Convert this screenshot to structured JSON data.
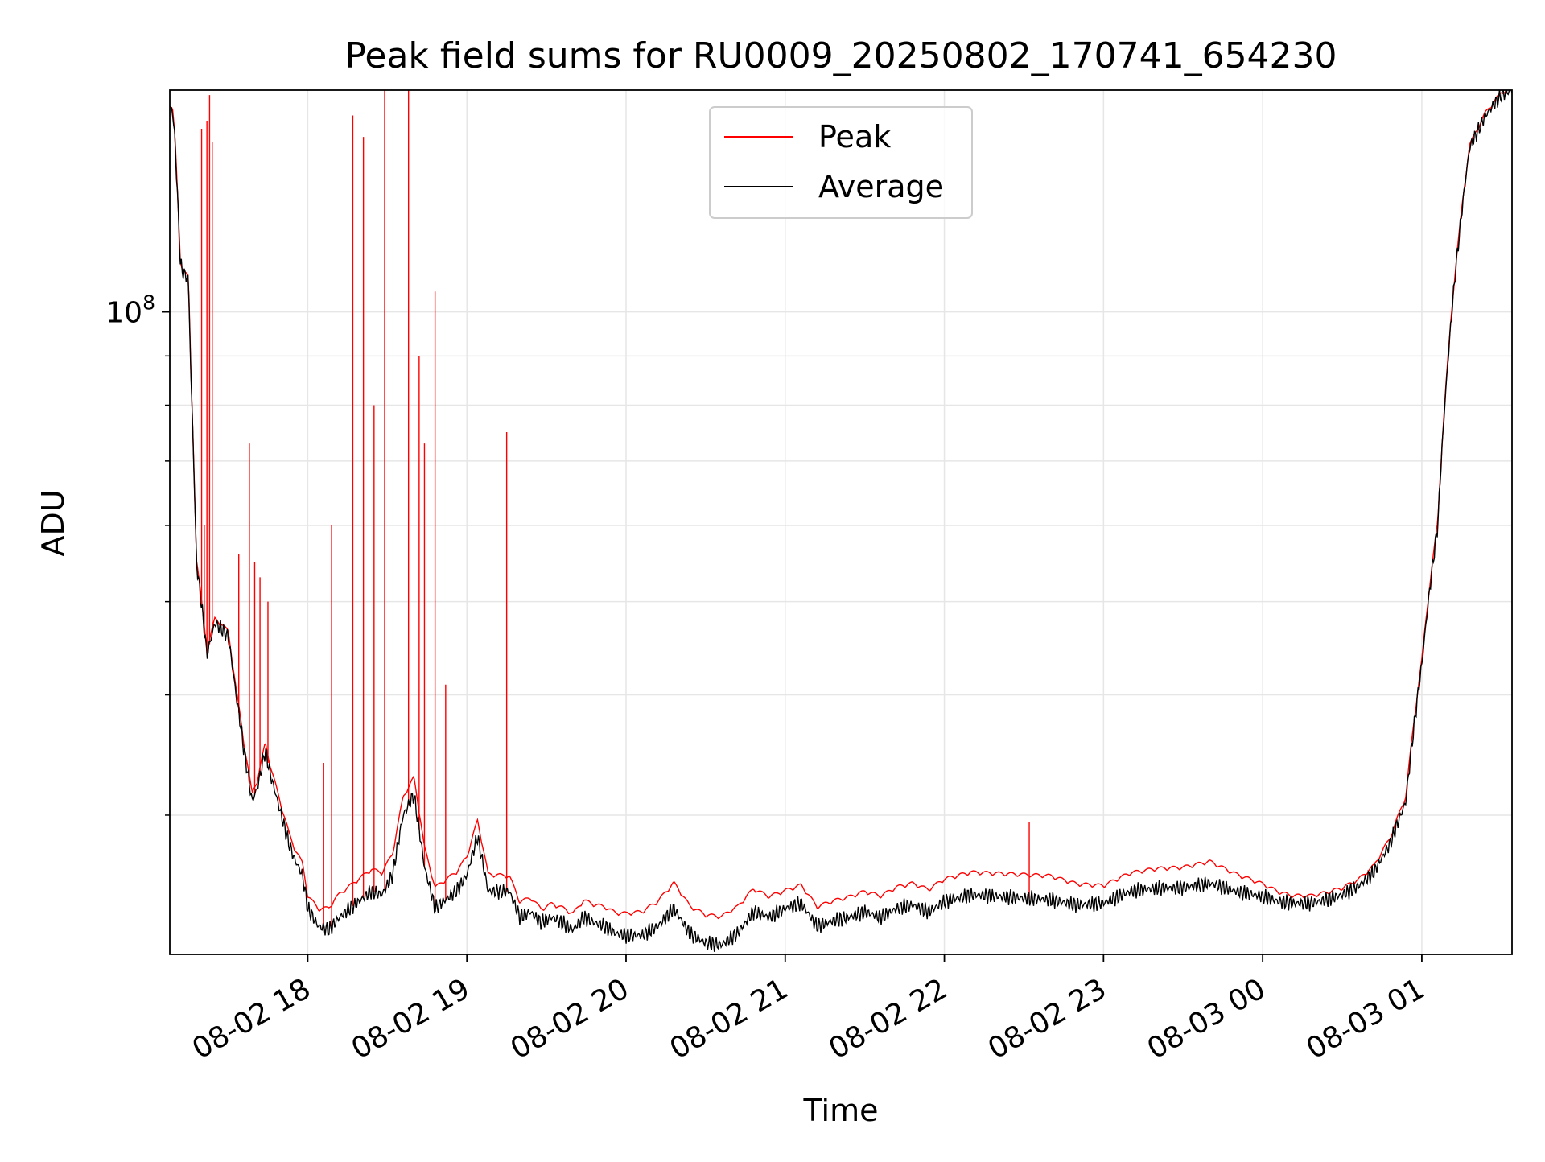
{
  "chart_data": {
    "type": "line",
    "title": "Peak field sums for RU0009_20250802_170741_654230",
    "xlabel": "Time",
    "ylabel": "ADU",
    "yscale": "log",
    "ylim": [
      21500000.0,
      170000000.0
    ],
    "xlim": [
      "2025-08-02 17:08",
      "2025-08-03 01:34"
    ],
    "x_tick_labels": [
      "08-02 18",
      "08-02 19",
      "08-02 20",
      "08-02 21",
      "08-02 22",
      "08-02 23",
      "08-03 00",
      "08-03 01"
    ],
    "x_ticks": [
      "2025-08-02 18:00",
      "2025-08-02 19:00",
      "2025-08-02 20:00",
      "2025-08-02 21:00",
      "2025-08-02 22:00",
      "2025-08-02 23:00",
      "2025-08-03 00:00",
      "2025-08-03 01:00"
    ],
    "y_major_tick_labels": [
      {
        "base": "10",
        "exp": "8",
        "value": 100000000.0
      }
    ],
    "y_minor_ticks": [
      30000000.0,
      40000000.0,
      50000000.0,
      60000000.0,
      70000000.0,
      80000000.0,
      90000000.0
    ],
    "grid": true,
    "legend": {
      "placement": "upper center",
      "entries": [
        "Peak",
        "Average"
      ]
    },
    "colors": {
      "Peak": "#ff0000",
      "Average": "#000000",
      "grid": "#e6e6e6"
    },
    "series": [
      {
        "name": "Average",
        "x": [
          "2025-08-02 17:08",
          "2025-08-02 17:09",
          "2025-08-02 17:10",
          "2025-08-02 17:11",
          "2025-08-02 17:12",
          "2025-08-02 17:13",
          "2025-08-02 17:15",
          "2025-08-02 17:16",
          "2025-08-02 17:18",
          "2025-08-02 17:22",
          "2025-08-02 17:25",
          "2025-08-02 17:27",
          "2025-08-02 17:30",
          "2025-08-02 17:33",
          "2025-08-02 17:36",
          "2025-08-02 17:39",
          "2025-08-02 17:41",
          "2025-08-02 17:44",
          "2025-08-02 17:46",
          "2025-08-02 17:50",
          "2025-08-02 17:53",
          "2025-08-02 17:55",
          "2025-08-02 17:58",
          "2025-08-02 18:00",
          "2025-08-02 18:04",
          "2025-08-02 18:08",
          "2025-08-02 18:12",
          "2025-08-02 18:16",
          "2025-08-02 18:20",
          "2025-08-02 18:24",
          "2025-08-02 18:28",
          "2025-08-02 18:32",
          "2025-08-02 18:36",
          "2025-08-02 18:40",
          "2025-08-02 18:44",
          "2025-08-02 18:48",
          "2025-08-02 18:52",
          "2025-08-02 18:56",
          "2025-08-02 19:00",
          "2025-08-02 19:04",
          "2025-08-02 19:08",
          "2025-08-02 19:12",
          "2025-08-02 19:16",
          "2025-08-02 19:20",
          "2025-08-02 19:24",
          "2025-08-02 19:28",
          "2025-08-02 19:32",
          "2025-08-02 19:36",
          "2025-08-02 19:40",
          "2025-08-02 19:44",
          "2025-08-02 19:48",
          "2025-08-02 19:52",
          "2025-08-02 19:56",
          "2025-08-02 20:00",
          "2025-08-02 20:06",
          "2025-08-02 20:12",
          "2025-08-02 20:18",
          "2025-08-02 20:24",
          "2025-08-02 20:30",
          "2025-08-02 20:36",
          "2025-08-02 20:42",
          "2025-08-02 20:48",
          "2025-08-02 20:54",
          "2025-08-02 21:00",
          "2025-08-02 21:06",
          "2025-08-02 21:12",
          "2025-08-02 21:18",
          "2025-08-02 21:24",
          "2025-08-02 21:30",
          "2025-08-02 21:36",
          "2025-08-02 21:42",
          "2025-08-02 21:48",
          "2025-08-02 21:54",
          "2025-08-02 22:00",
          "2025-08-02 22:10",
          "2025-08-02 22:20",
          "2025-08-02 22:30",
          "2025-08-02 22:40",
          "2025-08-02 22:50",
          "2025-08-02 23:00",
          "2025-08-02 23:10",
          "2025-08-02 23:20",
          "2025-08-02 23:30",
          "2025-08-02 23:40",
          "2025-08-02 23:50",
          "2025-08-03 00:00",
          "2025-08-03 00:06",
          "2025-08-03 00:12",
          "2025-08-03 00:18",
          "2025-08-03 00:24",
          "2025-08-03 00:30",
          "2025-08-03 00:36",
          "2025-08-03 00:42",
          "2025-08-03 00:48",
          "2025-08-03 00:54",
          "2025-08-03 01:00",
          "2025-08-03 01:06",
          "2025-08-03 01:12",
          "2025-08-03 01:18",
          "2025-08-03 01:24",
          "2025-08-03 01:30",
          "2025-08-03 01:34"
        ],
        "y": [
          163000000.0,
          162000000.0,
          150000000.0,
          130000000.0,
          112000000.0,
          110000000.0,
          108000000.0,
          85000000.0,
          55000000.0,
          44000000.0,
          47500000.0,
          47000000.0,
          46000000.0,
          40000000.0,
          35000000.0,
          31000000.0,
          32000000.0,
          35000000.0,
          33000000.0,
          30000000.0,
          28000000.0,
          27000000.0,
          26000000.0,
          24000000.0,
          23000000.0,
          22800000.0,
          23500000.0,
          24000000.0,
          24500000.0,
          25000000.0,
          24800000.0,
          26000000.0,
          30000000.0,
          31500000.0,
          26500000.0,
          24000000.0,
          24500000.0,
          25000000.0,
          26000000.0,
          28500000.0,
          25000000.0,
          25000000.0,
          25000000.0,
          23500000.0,
          23800000.0,
          23200000.0,
          23500000.0,
          23200000.0,
          22800000.0,
          23500000.0,
          23200000.0,
          23000000.0,
          22600000.0,
          22500000.0,
          22500000.0,
          23000000.0,
          24000000.0,
          22600000.0,
          22100000.0,
          22000000.0,
          22600000.0,
          23800000.0,
          23500000.0,
          24000000.0,
          24300000.0,
          23000000.0,
          23300000.0,
          23500000.0,
          23800000.0,
          23500000.0,
          24000000.0,
          24200000.0,
          23800000.0,
          24400000.0,
          24800000.0,
          24700000.0,
          24600000.0,
          24500000.0,
          24200000.0,
          24300000.0,
          25000000.0,
          25200000.0,
          25200000.0,
          25500000.0,
          25000000.0,
          24700000.0,
          24400000.0,
          24300000.0,
          24300000.0,
          24500000.0,
          24800000.0,
          25300000.0,
          26200000.0,
          28000000.0,
          31000000.0,
          43000000.0,
          60000000.0,
          105000000.0,
          148000000.0,
          160000000.0,
          168000000.0,
          170000000.0
        ]
      },
      {
        "name": "Peak",
        "baseline_offset_x": [
          "2025-08-02 17:08",
          "2025-08-02 17:40",
          "2025-08-02 18:00",
          "2025-08-02 18:10",
          "2025-08-02 18:30",
          "2025-08-02 19:00",
          "2025-08-02 19:30",
          "2025-08-02 20:20",
          "2025-08-02 20:40",
          "2025-08-02 21:00",
          "2025-08-02 22:00",
          "2025-08-02 22:40",
          "2025-08-02 23:00",
          "2025-08-02 23:40",
          "2025-08-03 00:10",
          "2025-08-03 01:00",
          "2025-08-03 01:34"
        ],
        "baseline_offset_y": [
          0,
          400000.0,
          600000.0,
          1200000.0,
          1200000.0,
          1000000.0,
          600000.0,
          1400000.0,
          1400000.0,
          900000.0,
          1200000.0,
          1300000.0,
          900000.0,
          1200000.0,
          300000.0,
          200000.0,
          0
        ],
        "spikes_x": [
          "2025-08-02 17:20",
          "2025-08-02 17:21",
          "2025-08-02 17:22",
          "2025-08-02 17:23",
          "2025-08-02 17:24",
          "2025-08-02 17:34",
          "2025-08-02 17:38",
          "2025-08-02 17:40",
          "2025-08-02 17:42",
          "2025-08-02 17:45",
          "2025-08-02 18:06",
          "2025-08-02 18:09",
          "2025-08-02 18:17",
          "2025-08-02 18:21",
          "2025-08-02 18:25",
          "2025-08-02 18:29",
          "2025-08-02 18:38",
          "2025-08-02 18:42",
          "2025-08-02 18:44",
          "2025-08-02 18:48",
          "2025-08-02 18:52",
          "2025-08-02 19:15",
          "2025-08-02 22:32"
        ],
        "spikes_y": [
          155000000.0,
          60000000.0,
          158000000.0,
          168000000.0,
          150000000.0,
          56000000.0,
          73000000.0,
          55000000.0,
          53000000.0,
          50000000.0,
          34000000.0,
          60000000.0,
          160000000.0,
          152000000.0,
          80000000.0,
          170000000.0,
          170000000.0,
          90000000.0,
          73000000.0,
          105000000.0,
          41000000.0,
          75000000.0,
          29500000.0
        ]
      }
    ]
  }
}
